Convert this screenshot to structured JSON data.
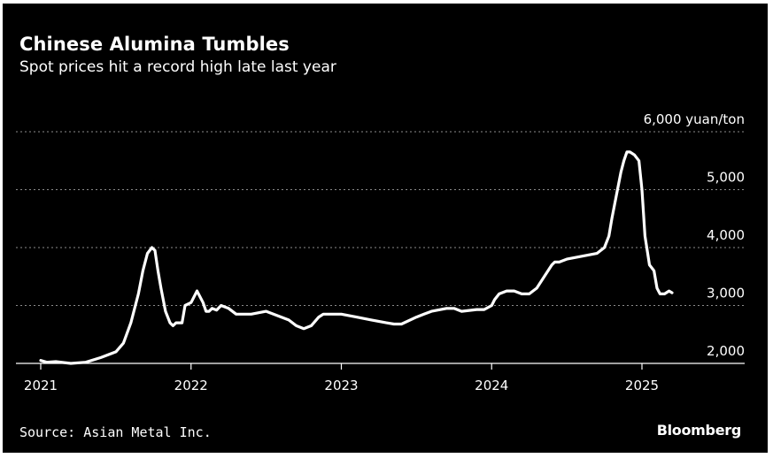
{
  "chart_data": {
    "type": "line",
    "title": "Chinese Alumina Tumbles",
    "subtitle": "Spot prices hit a record high late last year",
    "unit": "yuan/ton",
    "ylim": [
      2000,
      6000
    ],
    "y_ticks": [
      2000,
      3000,
      4000,
      5000,
      6000
    ],
    "y_tick_labels": [
      "2,000",
      "3,000",
      "4,000",
      "5,000",
      "6,000 yuan/ton"
    ],
    "xlim": [
      2021.0,
      2025.65
    ],
    "x_ticks": [
      2021,
      2022,
      2023,
      2024,
      2025
    ],
    "x_tick_labels": [
      "2021",
      "2022",
      "2023",
      "2024",
      "2025"
    ],
    "grid": "horizontal dotted",
    "line_color": "#ffffff",
    "series": [
      {
        "x": [
          2021.0,
          2021.04,
          2021.1,
          2021.2,
          2021.3,
          2021.4,
          2021.5,
          2021.55,
          2021.6,
          2021.65,
          2021.68,
          2021.71,
          2021.74,
          2021.76,
          2021.78,
          2021.8,
          2021.83,
          2021.86,
          2021.88,
          2021.9,
          2021.92,
          2021.94,
          2021.96,
          2022.0,
          2022.04,
          2022.08,
          2022.1,
          2022.12,
          2022.14,
          2022.17,
          2022.2,
          2022.25,
          2022.3,
          2022.35,
          2022.4,
          2022.5,
          2022.6,
          2022.65,
          2022.7,
          2022.75,
          2022.8,
          2022.85,
          2022.88,
          2022.92,
          2022.95,
          2023.0,
          2023.1,
          2023.2,
          2023.3,
          2023.35,
          2023.4,
          2023.5,
          2023.55,
          2023.6,
          2023.7,
          2023.75,
          2023.8,
          2023.9,
          2023.95,
          2024.0,
          2024.02,
          2024.05,
          2024.1,
          2024.15,
          2024.2,
          2024.25,
          2024.3,
          2024.35,
          2024.4,
          2024.42,
          2024.45,
          2024.5,
          2024.6,
          2024.7,
          2024.75,
          2024.78,
          2024.8,
          2024.83,
          2024.86,
          2024.88,
          2024.9,
          2024.92,
          2024.95,
          2024.98,
          2025.0,
          2025.02,
          2025.05,
          2025.08,
          2025.1,
          2025.12,
          2025.15,
          2025.18,
          2025.2
        ],
        "y": [
          2050,
          2020,
          2030,
          2000,
          2020,
          2100,
          2200,
          2350,
          2700,
          3200,
          3600,
          3900,
          4000,
          3950,
          3600,
          3300,
          2900,
          2700,
          2650,
          2700,
          2700,
          2700,
          3000,
          3050,
          3250,
          3050,
          2900,
          2900,
          2950,
          2920,
          3000,
          2950,
          2850,
          2850,
          2850,
          2900,
          2800,
          2750,
          2650,
          2600,
          2650,
          2800,
          2850,
          2850,
          2850,
          2850,
          2800,
          2750,
          2700,
          2680,
          2680,
          2800,
          2850,
          2900,
          2950,
          2950,
          2900,
          2930,
          2930,
          3000,
          3100,
          3200,
          3250,
          3250,
          3200,
          3200,
          3300,
          3500,
          3700,
          3750,
          3750,
          3800,
          3850,
          3900,
          4000,
          4200,
          4500,
          4900,
          5300,
          5500,
          5650,
          5650,
          5600,
          5500,
          5000,
          4200,
          3700,
          3600,
          3300,
          3200,
          3200,
          3250,
          3220
        ]
      }
    ]
  },
  "footer": {
    "source": "Source: Asian Metal Inc.",
    "brand": "Bloomberg"
  }
}
